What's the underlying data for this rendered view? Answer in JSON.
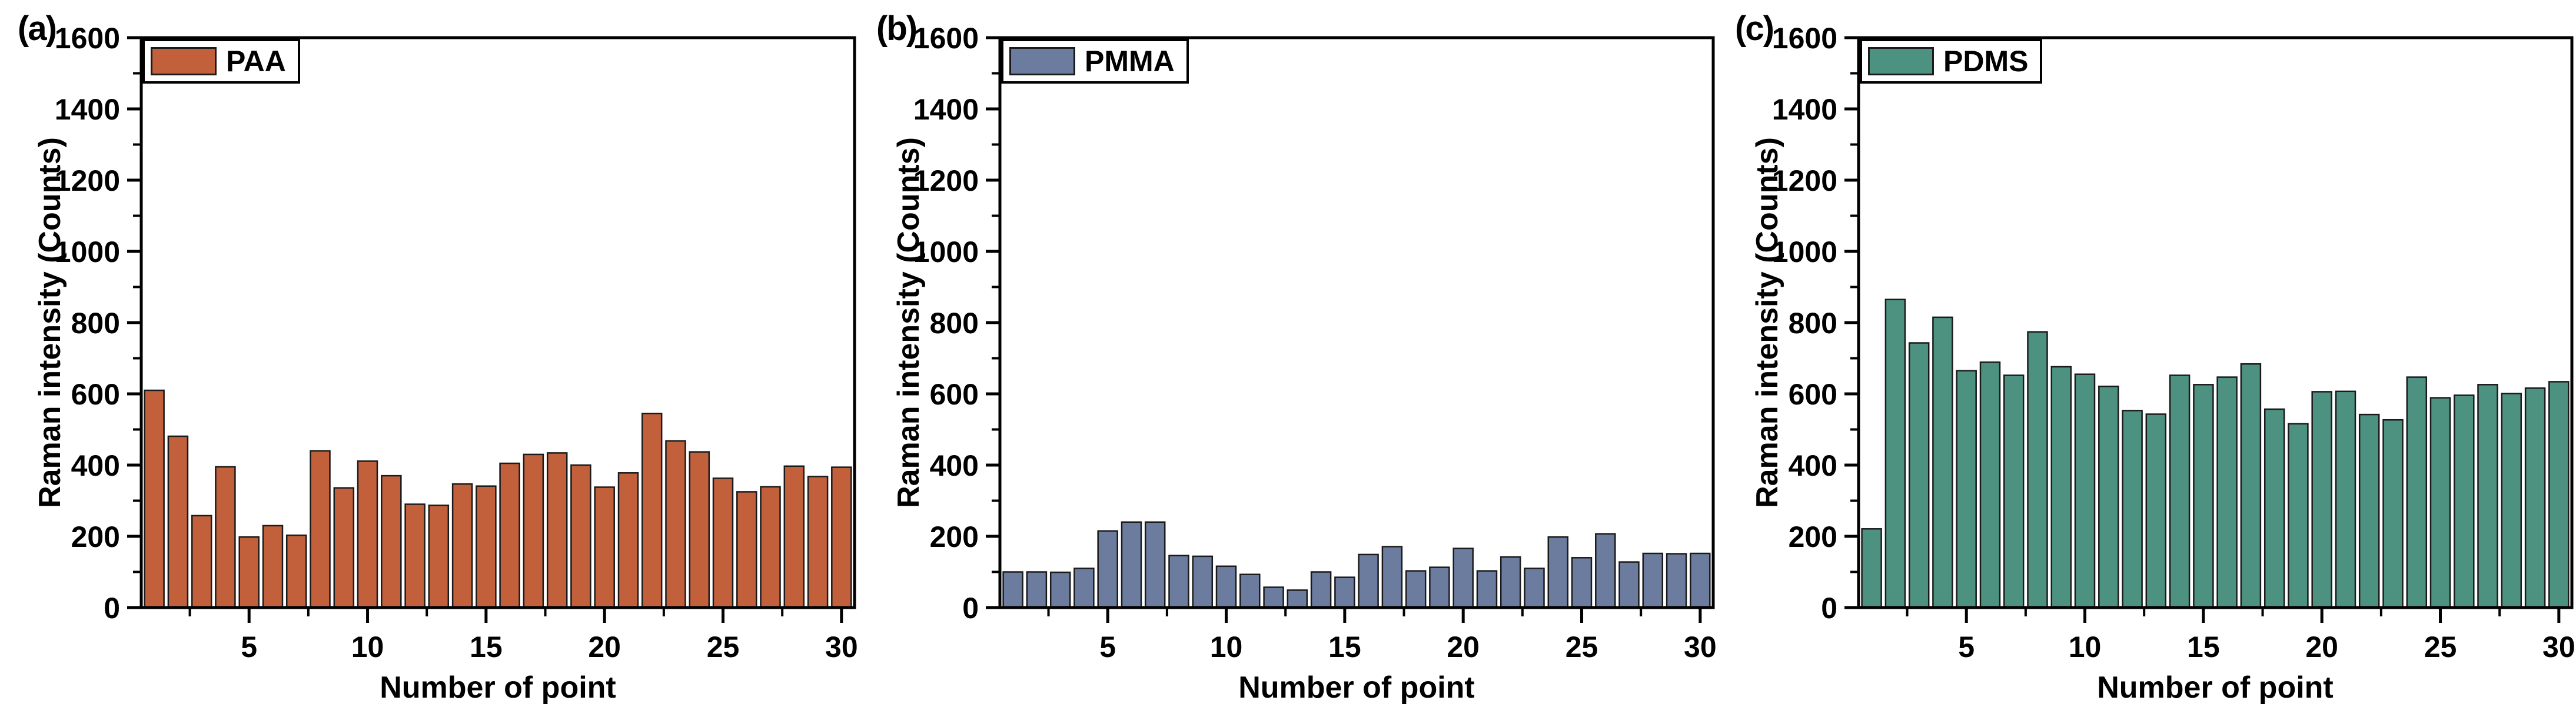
{
  "figure": {
    "background": "#ffffff",
    "text_color": "#000000"
  },
  "axes": {
    "x_label": "Number of point",
    "y_label": "Raman intensity (Counts)",
    "xlim": [
      0.45,
      30.55
    ],
    "ylim": [
      0,
      1600
    ],
    "y_major_step": 200,
    "y_minor_step": 100,
    "x_major_ticks": [
      5,
      10,
      15,
      20,
      25,
      30
    ],
    "x_minor_ticks": [
      2.5,
      7.5,
      12.5,
      17.5,
      22.5,
      27.5
    ],
    "grid": false,
    "legend_position": "top-left-inside"
  },
  "chart_data": [
    {
      "type": "bar",
      "panel_label": "(a)",
      "legend_label": "PAA",
      "color": "#c2603c",
      "bar_edge_color": "#1a1a1a",
      "xlabel": "Number of point",
      "ylabel": "Raman intensity (Counts)",
      "ylim": [
        0,
        1600
      ],
      "categories": [
        1,
        2,
        3,
        4,
        5,
        6,
        7,
        8,
        9,
        10,
        11,
        12,
        13,
        14,
        15,
        16,
        17,
        18,
        19,
        20,
        21,
        22,
        23,
        24,
        25,
        26,
        27,
        28,
        29,
        30
      ],
      "values": [
        610,
        481,
        258,
        395,
        198,
        230,
        203,
        440,
        336,
        411,
        370,
        290,
        287,
        347,
        341,
        405,
        430,
        434,
        400,
        338,
        378,
        545,
        468,
        437,
        363,
        325,
        339,
        397,
        368,
        394
      ]
    },
    {
      "type": "bar",
      "panel_label": "(b)",
      "legend_label": "PMMA",
      "color": "#6b7c9e",
      "bar_edge_color": "#1a1a1a",
      "xlabel": "Number of point",
      "ylabel": "Raman intensity (Counts)",
      "ylim": [
        0,
        1600
      ],
      "categories": [
        1,
        2,
        3,
        4,
        5,
        6,
        7,
        8,
        9,
        10,
        11,
        12,
        13,
        14,
        15,
        16,
        17,
        18,
        19,
        20,
        21,
        22,
        23,
        24,
        25,
        26,
        27,
        28,
        29,
        30
      ],
      "values": [
        100,
        100,
        99,
        110,
        215,
        240,
        240,
        146,
        144,
        116,
        93,
        57,
        49,
        100,
        85,
        149,
        171,
        103,
        113,
        166,
        103,
        142,
        110,
        198,
        140,
        207,
        128,
        152,
        151,
        152
      ]
    },
    {
      "type": "bar",
      "panel_label": "(c)",
      "legend_label": "PDMS",
      "color": "#4d9181",
      "bar_edge_color": "#1a1a1a",
      "xlabel": "Number of point",
      "ylabel": "Raman intensity (Counts)",
      "ylim": [
        0,
        1600
      ],
      "categories": [
        1,
        2,
        3,
        4,
        5,
        6,
        7,
        8,
        9,
        10,
        11,
        12,
        13,
        14,
        15,
        16,
        17,
        18,
        19,
        20,
        21,
        22,
        23,
        24,
        25,
        26,
        27,
        28,
        29,
        30
      ],
      "values": [
        221,
        865,
        743,
        815,
        665,
        689,
        652,
        774,
        676,
        655,
        621,
        553,
        543,
        652,
        626,
        647,
        684,
        557,
        516,
        606,
        607,
        542,
        527,
        647,
        589,
        596,
        626,
        601,
        616,
        634
      ]
    }
  ]
}
